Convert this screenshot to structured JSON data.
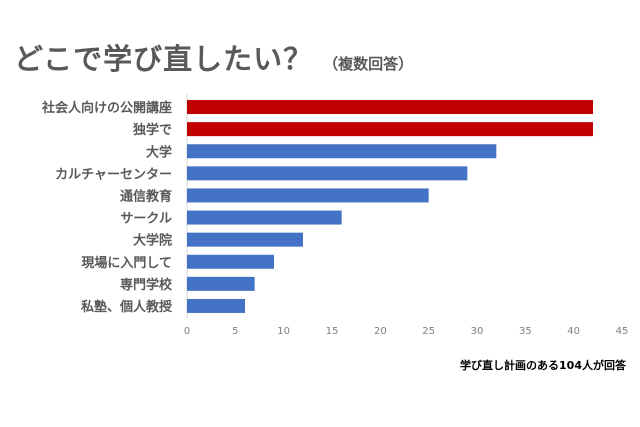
{
  "title": "どこで学び直したい？",
  "subtitle": "（複数回答）",
  "note": "学び直し計画のある104人が回答",
  "colors": {
    "highlight": "#c00000",
    "default": "#4472c4",
    "text": "#595959"
  },
  "chart_data": {
    "type": "bar",
    "orientation": "horizontal",
    "categories": [
      "社会人向けの公開講座",
      "独学で",
      "大学",
      "カルチャーセンター",
      "通信教育",
      "サークル",
      "大学院",
      "現場に入門して",
      "専門学校",
      "私塾、個人教授"
    ],
    "values": [
      42,
      42,
      32,
      29,
      25,
      16,
      12,
      9,
      7,
      6
    ],
    "bar_colors": [
      "highlight",
      "highlight",
      "default",
      "default",
      "default",
      "default",
      "default",
      "default",
      "default",
      "default"
    ],
    "xlim": [
      0,
      45
    ],
    "xticks": [
      0,
      5,
      10,
      15,
      20,
      25,
      30,
      35,
      40,
      45
    ],
    "grid": false
  }
}
